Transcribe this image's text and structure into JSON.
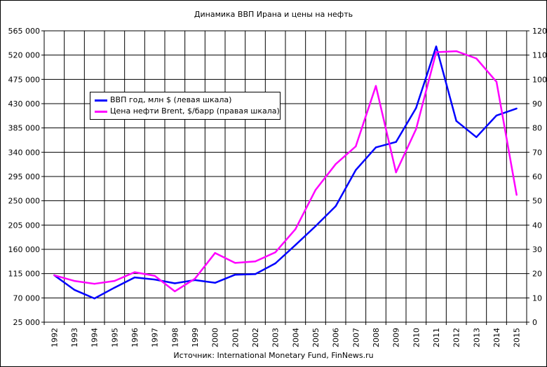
{
  "chart_data": {
    "type": "line",
    "title": "Динамика ВВП Ирана и цены на нефть",
    "source": "Источник: International Monetary Fund, FinNews.ru",
    "categories": [
      "1992",
      "1993",
      "1994",
      "1995",
      "1996",
      "1997",
      "1998",
      "1999",
      "2000",
      "2001",
      "2002",
      "2003",
      "2004",
      "2005",
      "2006",
      "2007",
      "2008",
      "2009",
      "2010",
      "2011",
      "2012",
      "2013",
      "2014",
      "2015"
    ],
    "series": [
      {
        "name": "ВВП год, млн $ (левая шкала)",
        "axis": "left",
        "color": "#0000ff",
        "values": [
          112000,
          85000,
          69000,
          89000,
          108000,
          104000,
          97000,
          103000,
          98000,
          113000,
          114000,
          134000,
          168000,
          203000,
          240000,
          307000,
          349000,
          359000,
          422000,
          536000,
          398000,
          368000,
          408000,
          421000
        ]
      },
      {
        "name": "Цена нефти Brent, $/барр (правая шкала)",
        "axis": "right",
        "color": "#ff00ff",
        "values": [
          19.3,
          17.0,
          15.8,
          17.0,
          20.6,
          19.1,
          12.7,
          17.9,
          28.5,
          24.4,
          25.0,
          28.8,
          38.3,
          54.5,
          65.1,
          72.4,
          97.3,
          61.7,
          79.5,
          111.2,
          111.6,
          108.6,
          99.0,
          52.4
        ]
      }
    ],
    "y_left": {
      "ylim": [
        25000,
        565000
      ],
      "ticks": [
        "25 000",
        "70 000",
        "115 000",
        "160 000",
        "205 000",
        "250 000",
        "295 000",
        "340 000",
        "385 000",
        "430 000",
        "475 000",
        "520 000",
        "565 000"
      ]
    },
    "y_right": {
      "ylim": [
        0,
        120
      ],
      "ticks": [
        "0",
        "10",
        "20",
        "30",
        "40",
        "50",
        "60",
        "70",
        "80",
        "90",
        "100",
        "110",
        "120"
      ]
    },
    "grid": true,
    "legend_position": "top-left"
  }
}
